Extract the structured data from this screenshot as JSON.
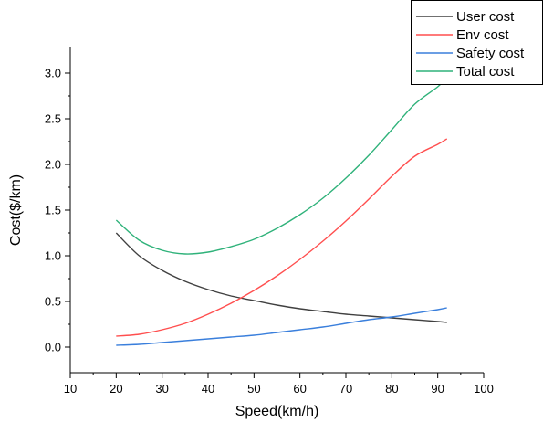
{
  "chart_data": {
    "type": "line",
    "title": "",
    "xlabel": "Speed(km/h)",
    "ylabel": "Cost($/km)",
    "xlim": [
      10,
      100
    ],
    "ylim": [
      -0.28,
      3.28
    ],
    "xticks": [
      "10",
      "20",
      "30",
      "40",
      "50",
      "60",
      "70",
      "80",
      "90",
      "100"
    ],
    "yticks": [
      "0.0",
      "0.5",
      "1.0",
      "1.5",
      "2.0",
      "2.5",
      "3.0"
    ],
    "grid": false,
    "legend_position": "top-right",
    "x": [
      20,
      25,
      30,
      35,
      40,
      45,
      50,
      55,
      60,
      65,
      70,
      75,
      80,
      85,
      90,
      92
    ],
    "series": [
      {
        "name": "User cost",
        "color": "#404040",
        "values": [
          1.25,
          1.0,
          0.84,
          0.72,
          0.63,
          0.56,
          0.51,
          0.46,
          0.42,
          0.39,
          0.36,
          0.34,
          0.32,
          0.3,
          0.28,
          0.27
        ]
      },
      {
        "name": "Env cost",
        "color": "#ff4f4f",
        "values": [
          0.12,
          0.14,
          0.19,
          0.26,
          0.36,
          0.48,
          0.62,
          0.78,
          0.96,
          1.16,
          1.38,
          1.62,
          1.87,
          2.09,
          2.22,
          2.28
        ]
      },
      {
        "name": "Safety cost",
        "color": "#3a7fdc",
        "values": [
          0.02,
          0.03,
          0.05,
          0.07,
          0.09,
          0.11,
          0.13,
          0.16,
          0.19,
          0.22,
          0.26,
          0.3,
          0.33,
          0.37,
          0.41,
          0.43
        ]
      },
      {
        "name": "Total cost",
        "color": "#2fb27a",
        "values": [
          1.39,
          1.17,
          1.06,
          1.02,
          1.04,
          1.1,
          1.18,
          1.3,
          1.45,
          1.63,
          1.85,
          2.1,
          2.38,
          2.66,
          2.85,
          2.95
        ]
      }
    ]
  }
}
